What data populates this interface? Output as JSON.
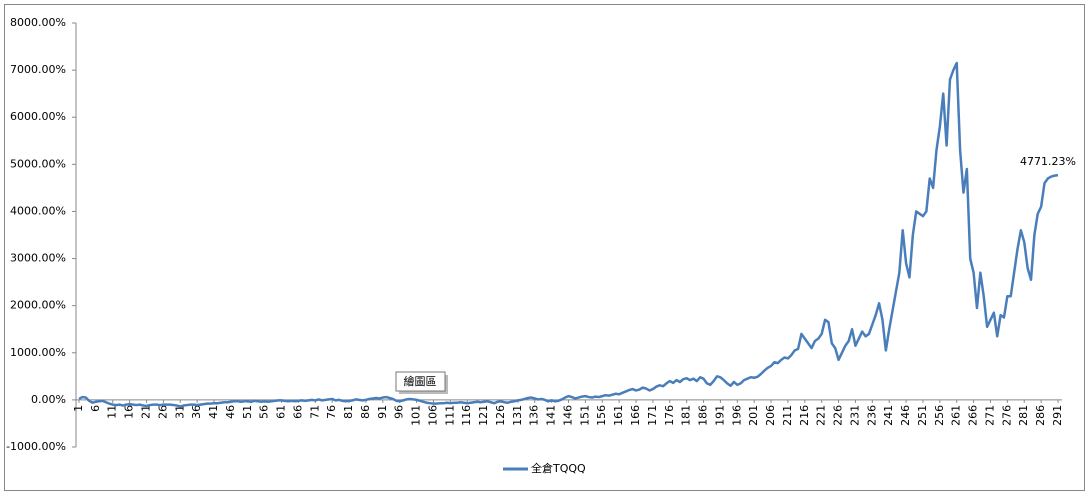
{
  "chart_data": {
    "type": "line",
    "x": [
      1,
      2,
      3,
      4,
      5,
      6,
      7,
      8,
      9,
      10,
      11,
      12,
      13,
      14,
      15,
      16,
      17,
      18,
      19,
      20,
      21,
      22,
      23,
      24,
      25,
      26,
      27,
      28,
      29,
      30,
      31,
      32,
      33,
      34,
      35,
      36,
      37,
      38,
      39,
      40,
      41,
      42,
      43,
      44,
      45,
      46,
      47,
      48,
      49,
      50,
      51,
      52,
      53,
      54,
      55,
      56,
      57,
      58,
      59,
      60,
      61,
      62,
      63,
      64,
      65,
      66,
      67,
      68,
      69,
      70,
      71,
      72,
      73,
      74,
      75,
      76,
      77,
      78,
      79,
      80,
      81,
      82,
      83,
      84,
      85,
      86,
      87,
      88,
      89,
      90,
      91,
      92,
      93,
      94,
      95,
      96,
      97,
      98,
      99,
      100,
      101,
      102,
      103,
      104,
      105,
      106,
      107,
      108,
      109,
      110,
      111,
      112,
      113,
      114,
      115,
      116,
      117,
      118,
      119,
      120,
      121,
      122,
      123,
      124,
      125,
      126,
      127,
      128,
      129,
      130,
      131,
      132,
      133,
      134,
      135,
      136,
      137,
      138,
      139,
      140,
      141,
      142,
      143,
      144,
      145,
      146,
      147,
      148,
      149,
      150,
      151,
      152,
      153,
      154,
      155,
      156,
      157,
      158,
      159,
      160,
      161,
      162,
      163,
      164,
      165,
      166,
      167,
      168,
      169,
      170,
      171,
      172,
      173,
      174,
      175,
      176,
      177,
      178,
      179,
      180,
      181,
      182,
      183,
      184,
      185,
      186,
      187,
      188,
      189,
      190,
      191,
      192,
      193,
      194,
      195,
      196,
      197,
      198,
      199,
      200,
      201,
      202,
      203,
      204,
      205,
      206,
      207,
      208,
      209,
      210,
      211,
      212,
      213,
      214,
      215,
      216,
      217,
      218,
      219,
      220,
      221,
      222,
      223,
      224,
      225,
      226,
      227,
      228,
      229,
      230,
      231,
      232,
      233,
      234,
      235,
      236,
      237,
      238,
      239,
      240,
      241,
      242,
      243,
      244,
      245,
      246,
      247,
      248,
      249,
      250,
      251,
      252,
      253,
      254,
      255,
      256,
      257,
      258,
      259,
      260,
      261,
      262,
      263,
      264,
      265,
      266,
      267,
      268,
      269,
      270,
      271,
      272,
      273,
      274,
      275,
      276,
      277,
      278,
      279,
      280,
      281,
      282,
      283,
      284,
      285,
      286,
      287,
      288,
      289,
      290,
      291
    ],
    "series": [
      {
        "name": "全倉TQQQ",
        "color": "#4a7ebb",
        "values": [
          20,
          60,
          50,
          -20,
          -60,
          -40,
          -30,
          -20,
          -50,
          -80,
          -100,
          -110,
          -100,
          -120,
          -100,
          -90,
          -100,
          -110,
          -100,
          -120,
          -130,
          -110,
          -100,
          -100,
          -110,
          -100,
          -100,
          -100,
          -110,
          -120,
          -140,
          -120,
          -110,
          -100,
          -100,
          -110,
          -100,
          -90,
          -80,
          -80,
          -70,
          -70,
          -60,
          -50,
          -50,
          -40,
          -30,
          -30,
          -40,
          -30,
          -30,
          -40,
          -20,
          -30,
          -40,
          -30,
          -40,
          -30,
          -20,
          -10,
          -10,
          -20,
          -30,
          -20,
          -30,
          -20,
          -10,
          -20,
          -10,
          0,
          -10,
          10,
          -10,
          0,
          10,
          20,
          -10,
          0,
          -20,
          -30,
          -20,
          -10,
          10,
          0,
          -10,
          0,
          20,
          30,
          40,
          30,
          50,
          60,
          40,
          20,
          -20,
          -30,
          -10,
          10,
          20,
          10,
          0,
          -20,
          -40,
          -60,
          -70,
          -80,
          -80,
          -70,
          -70,
          -60,
          -70,
          -60,
          -60,
          -50,
          -60,
          -70,
          -60,
          -50,
          -40,
          -50,
          -40,
          -30,
          -50,
          -70,
          -40,
          -30,
          -50,
          -60,
          -40,
          -30,
          -10,
          0,
          20,
          40,
          50,
          30,
          10,
          20,
          0,
          -30,
          -10,
          -30,
          -20,
          10,
          50,
          80,
          60,
          30,
          50,
          70,
          80,
          60,
          50,
          70,
          60,
          80,
          100,
          90,
          110,
          130,
          120,
          150,
          180,
          210,
          230,
          200,
          220,
          260,
          240,
          200,
          230,
          280,
          310,
          290,
          350,
          400,
          360,
          420,
          380,
          440,
          460,
          420,
          450,
          400,
          480,
          450,
          350,
          320,
          400,
          500,
          480,
          420,
          350,
          300,
          380,
          320,
          350,
          420,
          450,
          480,
          470,
          490,
          550,
          620,
          680,
          720,
          800,
          780,
          850,
          900,
          880,
          950,
          1050,
          1080,
          1400,
          1300,
          1200,
          1100,
          1250,
          1300,
          1400,
          1700,
          1650,
          1200,
          1100,
          850,
          1000,
          1150,
          1250,
          1500,
          1150,
          1300,
          1450,
          1350,
          1400,
          1600,
          1800,
          2050,
          1700,
          1050,
          1500,
          1900,
          2300,
          2700,
          3600,
          2900,
          2600,
          3500,
          4000,
          3950,
          3900,
          4000,
          4700,
          4500,
          5300,
          5800,
          6500,
          5400,
          6800,
          7000,
          7150,
          5300,
          4400,
          4900,
          3000,
          2700,
          1950,
          2700,
          2200,
          1550,
          1700,
          1850,
          1350,
          1800,
          1750,
          2200,
          2200,
          2700,
          3200,
          3600,
          3350,
          2800,
          2550,
          3500,
          3950,
          4100,
          4600,
          4700,
          4740,
          4760,
          4771.23
        ]
      }
    ],
    "end_label": "4771.23%",
    "tooltip": "繪圖區",
    "xlim": [
      1,
      291
    ],
    "xticks": [
      1,
      6,
      11,
      16,
      21,
      26,
      31,
      36,
      41,
      46,
      51,
      56,
      61,
      66,
      71,
      76,
      81,
      86,
      91,
      96,
      101,
      106,
      111,
      116,
      121,
      126,
      131,
      136,
      141,
      146,
      151,
      156,
      161,
      166,
      171,
      176,
      181,
      186,
      191,
      196,
      201,
      206,
      211,
      216,
      221,
      226,
      231,
      236,
      241,
      246,
      251,
      256,
      261,
      266,
      271,
      276,
      281,
      286,
      291
    ],
    "ylim": [
      -1000,
      8000
    ],
    "yticks": [
      {
        "value": -1000,
        "label": "-1000.00%"
      },
      {
        "value": 0,
        "label": "0.00%"
      },
      {
        "value": 1000,
        "label": "1000.00%"
      },
      {
        "value": 2000,
        "label": "2000.00%"
      },
      {
        "value": 3000,
        "label": "3000.00%"
      },
      {
        "value": 4000,
        "label": "4000.00%"
      },
      {
        "value": 5000,
        "label": "5000.00%"
      },
      {
        "value": 6000,
        "label": "6000.00%"
      },
      {
        "value": 7000,
        "label": "7000.00%"
      },
      {
        "value": 8000,
        "label": "8000.00%"
      }
    ],
    "legend": "bottom"
  }
}
